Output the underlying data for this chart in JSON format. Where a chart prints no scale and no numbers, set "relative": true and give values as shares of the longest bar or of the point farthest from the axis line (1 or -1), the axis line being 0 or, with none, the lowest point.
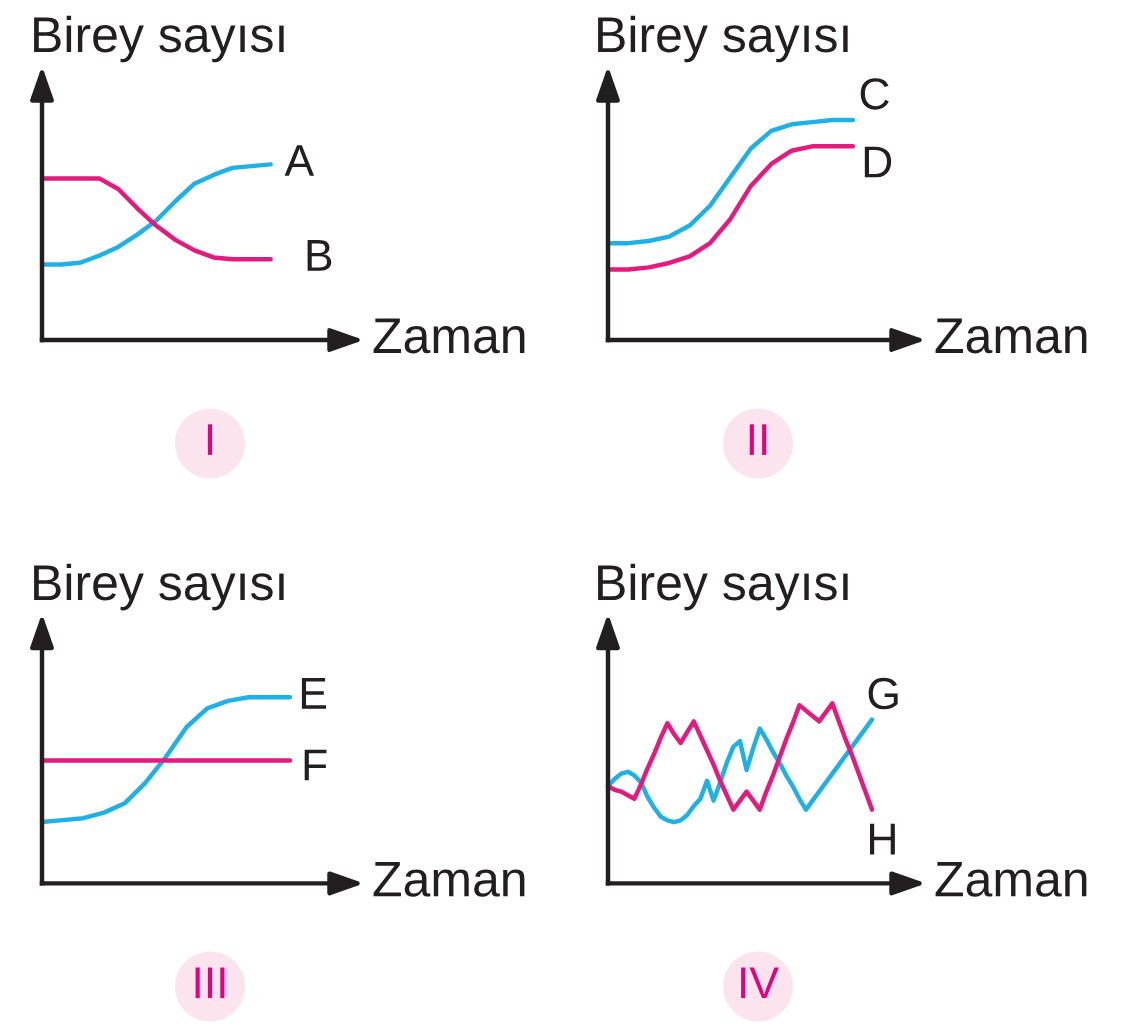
{
  "chart_data": [
    {
      "type": "line",
      "ylabel": "Birey sayısı",
      "xlabel": "Zaman",
      "relative": true,
      "annotations": [
        "I"
      ],
      "categories": [
        null,
        null,
        null,
        null,
        null,
        null,
        null,
        null,
        null,
        null,
        null,
        null,
        null
      ],
      "series": [
        {
          "name": "A",
          "color": "#1fb1e6",
          "values": [
            0.43,
            0.43,
            0.44,
            0.48,
            0.53,
            0.6,
            0.68,
            0.79,
            0.89,
            0.94,
            0.98,
            0.99,
            1.0
          ]
        },
        {
          "name": "B",
          "color": "#e6197f",
          "values": [
            0.92,
            0.92,
            0.92,
            0.92,
            0.86,
            0.75,
            0.65,
            0.57,
            0.51,
            0.47,
            0.46,
            0.46,
            0.46
          ]
        }
      ]
    },
    {
      "type": "line",
      "ylabel": "Birey sayısı",
      "xlabel": "Zaman",
      "relative": true,
      "annotations": [
        "II"
      ],
      "categories": [
        null,
        null,
        null,
        null,
        null,
        null,
        null,
        null,
        null,
        null,
        null,
        null,
        null
      ],
      "series": [
        {
          "name": "C",
          "color": "#1fb1e6",
          "values": [
            0.44,
            0.44,
            0.45,
            0.47,
            0.52,
            0.61,
            0.74,
            0.87,
            0.95,
            0.98,
            0.99,
            1.0,
            1.0
          ]
        },
        {
          "name": "D",
          "color": "#e6197f",
          "values": [
            0.32,
            0.32,
            0.33,
            0.35,
            0.38,
            0.44,
            0.55,
            0.7,
            0.8,
            0.86,
            0.88,
            0.88,
            0.88
          ]
        }
      ]
    },
    {
      "type": "line",
      "ylabel": "Birey sayısı",
      "xlabel": "Zaman",
      "relative": true,
      "annotations": [
        "III"
      ],
      "categories": [
        null,
        null,
        null,
        null,
        null,
        null,
        null,
        null,
        null,
        null,
        null,
        null,
        null
      ],
      "series": [
        {
          "name": "E",
          "color": "#1fb1e6",
          "values": [
            0.33,
            0.34,
            0.35,
            0.38,
            0.43,
            0.54,
            0.68,
            0.84,
            0.94,
            0.98,
            1.0,
            1.0,
            1.0
          ]
        },
        {
          "name": "F",
          "color": "#e6197f",
          "values": [
            0.66,
            0.66,
            0.66,
            0.66,
            0.66,
            0.66,
            0.66,
            0.66,
            0.66,
            0.66,
            0.66,
            0.66,
            0.66
          ]
        }
      ]
    },
    {
      "type": "line",
      "ylabel": "Birey sayısı",
      "xlabel": "Zaman",
      "relative": true,
      "annotations": [
        "IV"
      ],
      "categories": [
        null,
        null,
        null,
        null,
        null,
        null,
        null,
        null,
        null,
        null,
        null,
        null,
        null,
        null,
        null,
        null,
        null,
        null,
        null,
        null,
        null,
        null,
        null,
        null,
        null,
        null,
        null,
        null,
        null,
        null,
        null,
        null,
        null,
        null,
        null,
        null,
        null,
        null,
        null,
        null,
        null
      ],
      "series": [
        {
          "name": "G",
          "color": "#1fb1e6",
          "values": [
            0.54,
            0.58,
            0.61,
            0.62,
            0.6,
            0.56,
            0.48,
            0.42,
            0.37,
            0.35,
            0.34,
            0.35,
            0.38,
            0.43,
            0.47,
            0.57,
            0.46,
            0.56,
            0.67,
            0.76,
            0.79,
            0.63,
            0.75,
            0.86,
            0.8,
            0.73,
            0.67,
            0.6,
            0.54,
            0.47,
            0.41,
            0.46,
            0.51,
            0.56,
            0.61,
            0.66,
            0.71,
            0.76,
            0.81,
            0.86,
            0.91
          ]
        },
        {
          "name": "H",
          "color": "#e6197f",
          "values": [
            0.54,
            0.52,
            0.51,
            0.49,
            0.47,
            0.55,
            0.64,
            0.72,
            0.81,
            0.89,
            0.83,
            0.78,
            0.84,
            0.9,
            0.82,
            0.74,
            0.66,
            0.57,
            0.49,
            0.41,
            0.46,
            0.51,
            0.46,
            0.41,
            0.51,
            0.6,
            0.7,
            0.8,
            0.89,
            0.99,
            0.96,
            0.93,
            0.9,
            0.95,
            1.0,
            0.9,
            0.8,
            0.71,
            0.61,
            0.51,
            0.41
          ]
        }
      ]
    }
  ]
}
